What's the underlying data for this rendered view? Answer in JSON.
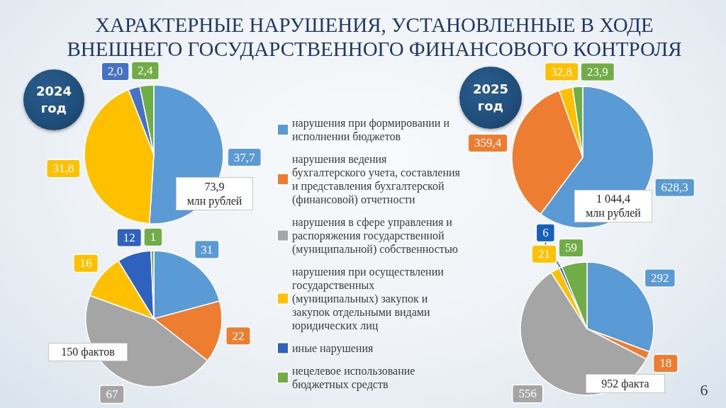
{
  "chart_data": [
    {
      "type": "pie",
      "title": "ХАРАКТЕРНЫЕ НАРУШЕНИЯ, УСТАНОВЛЕННЫЕ В ХОДЕ ВНЕШНЕГО ГОСУДАРСТВЕННОГО ФИНАНСОВОГО КОНТРОЛЯ",
      "subtitle": "2024 год",
      "categories": [
        null,
        null,
        null,
        null
      ],
      "values": [
        37.7,
        31.8,
        2.0,
        2.4
      ],
      "value_labels": [
        "37,7",
        "31,8",
        "2,0",
        "2,4"
      ],
      "colors": [
        "#5b9bd5",
        "#ffc000",
        "#4472c4",
        "#70ad47"
      ],
      "annotations": [
        "73,9\nмлн рублей"
      ]
    },
    {
      "type": "pie",
      "subtitle": "2025 год",
      "categories": [
        null,
        null,
        null,
        null
      ],
      "values": [
        628.3,
        359.4,
        32.8,
        23.9
      ],
      "value_labels": [
        "628,3",
        "359,4",
        "32,8",
        "23,9"
      ],
      "colors": [
        "#5b9bd5",
        "#ed7d31",
        "#ffc000",
        "#70ad47"
      ],
      "annotations": [
        "1 044,4\nмлн рублей"
      ]
    },
    {
      "type": "pie",
      "categories": [
        "нарушения при формировании и исполнении бюджетов",
        "нарушения ведения бухгалтерского учета, составления и представления бухгалтерской (финансовой) отчетности",
        "нарушения в сфере управления и распоряжения государственной (муниципальной) собственностью",
        "нарушения при осуществлении государственных (муниципальных) закупок и закупок отдельными видами юридических лиц",
        "иные нарушения",
        "нецелевое использование бюджетных средств"
      ],
      "values": [
        31,
        22,
        67,
        16,
        12,
        1
      ],
      "data_labels": true,
      "colors": [
        "#5b9bd5",
        "#ed7d31",
        "#a5a5a5",
        "#ffc000",
        "#2f62bf",
        "#70ad47"
      ],
      "legend": "right",
      "annotations": [
        "150 фактов"
      ]
    },
    {
      "type": "pie",
      "categories": [
        null,
        null,
        null,
        null,
        null,
        null
      ],
      "values": [
        292,
        18,
        556,
        21,
        6,
        59
      ],
      "data_labels": true,
      "colors": [
        "#5b9bd5",
        "#ed7d31",
        "#a5a5a5",
        "#ffc000",
        "#1560bd",
        "#70ad47"
      ],
      "annotations": [
        "952 факта",
        "6"
      ]
    }
  ]
}
